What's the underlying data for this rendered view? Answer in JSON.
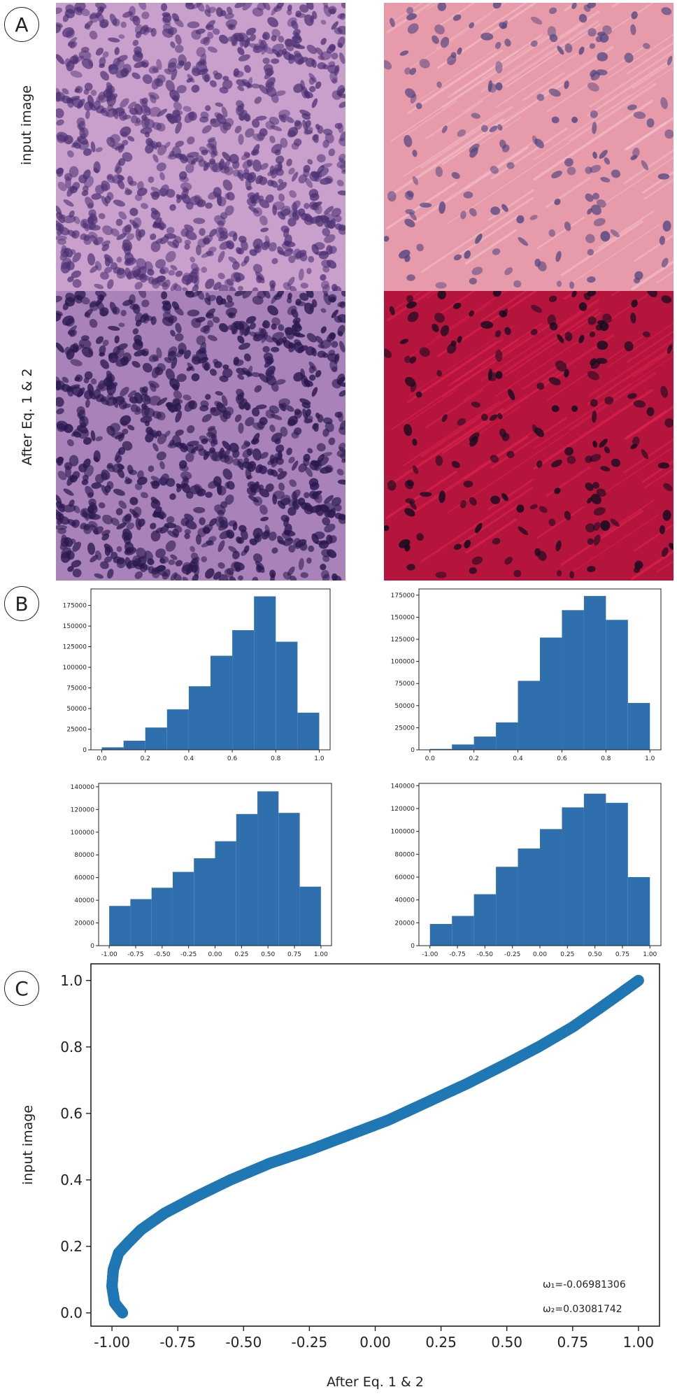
{
  "panel_a": {
    "letter": "A",
    "row_labels": [
      "input image",
      "After Eq. 1 & 2"
    ]
  },
  "panel_b": {
    "letter": "B"
  },
  "panel_c": {
    "letter": "C",
    "annotation_w1": "ω₁=-0.06981306",
    "annotation_w2": "ω₂=0.03081742"
  },
  "colors": {
    "bar": "#2f6fad",
    "scatter": "#1f77b4",
    "tile_normal_bg": "#c99fcb",
    "tile_stroma_bg": "#e79aa9",
    "tile_normal_out_bg": "#a882b8",
    "tile_stroma_out_bg": "#b5143d",
    "nucleus_dark": "#3a2460"
  },
  "chart_data": [
    {
      "type": "bar",
      "id": "hist_top_left",
      "bin_edges": [
        0.0,
        0.1,
        0.2,
        0.3,
        0.4,
        0.5,
        0.6,
        0.7,
        0.8,
        0.9,
        1.0
      ],
      "values": [
        3000,
        11000,
        27000,
        49000,
        77000,
        114000,
        145000,
        186000,
        131000,
        45000
      ],
      "xticks": [
        "0.0",
        "0.2",
        "0.4",
        "0.6",
        "0.8",
        "1.0"
      ],
      "yticks": [
        "0",
        "25000",
        "50000",
        "75000",
        "100000",
        "125000",
        "150000",
        "175000"
      ],
      "xlim": [
        -0.05,
        1.05
      ],
      "ylim": [
        0,
        195000
      ]
    },
    {
      "type": "bar",
      "id": "hist_top_right",
      "bin_edges": [
        0.0,
        0.1,
        0.2,
        0.3,
        0.4,
        0.5,
        0.6,
        0.7,
        0.8,
        0.9,
        1.0
      ],
      "values": [
        1000,
        6000,
        15000,
        31000,
        78000,
        127000,
        158000,
        174000,
        147000,
        53000
      ],
      "xticks": [
        "0.0",
        "0.2",
        "0.4",
        "0.6",
        "0.8",
        "1.0"
      ],
      "yticks": [
        "0",
        "25000",
        "50000",
        "75000",
        "100000",
        "125000",
        "150000",
        "175000"
      ],
      "xlim": [
        -0.05,
        1.05
      ],
      "ylim": [
        0,
        182000
      ]
    },
    {
      "type": "bar",
      "id": "hist_bottom_left",
      "bin_edges": [
        -1.0,
        -0.8,
        -0.6,
        -0.4,
        -0.2,
        0.0,
        0.2,
        0.4,
        0.6,
        0.8,
        1.0
      ],
      "values": [
        35000,
        41000,
        51000,
        65000,
        77000,
        92000,
        116000,
        136000,
        117000,
        52000
      ],
      "xticks": [
        "-1.00",
        "-0.75",
        "-0.50",
        "-0.25",
        "0.00",
        "0.25",
        "0.50",
        "0.75",
        "1.00"
      ],
      "yticks": [
        "0",
        "20000",
        "40000",
        "60000",
        "80000",
        "100000",
        "120000",
        "140000"
      ],
      "xlim": [
        -1.1,
        1.1
      ],
      "ylim": [
        0,
        143000
      ]
    },
    {
      "type": "bar",
      "id": "hist_bottom_right",
      "bin_edges": [
        -1.0,
        -0.8,
        -0.6,
        -0.4,
        -0.2,
        0.0,
        0.2,
        0.4,
        0.6,
        0.8,
        1.0
      ],
      "values": [
        19000,
        26000,
        45000,
        69000,
        85000,
        102000,
        121000,
        133000,
        125000,
        60000
      ],
      "xticks": [
        "-1.00",
        "-0.75",
        "-0.50",
        "-0.25",
        "0.00",
        "0.25",
        "0.50",
        "0.75",
        "1.00"
      ],
      "yticks": [
        "0",
        "20000",
        "40000",
        "60000",
        "80000",
        "100000",
        "120000",
        "140000"
      ],
      "xlim": [
        -1.1,
        1.1
      ],
      "ylim": [
        0,
        142000
      ]
    },
    {
      "type": "scatter",
      "id": "transfer_curve",
      "xlabel": "After Eq. 1 & 2",
      "ylabel": "input image",
      "x": [
        -0.96,
        -0.99,
        -1.0,
        -0.995,
        -0.975,
        -0.94,
        -0.89,
        -0.8,
        -0.68,
        -0.55,
        -0.4,
        -0.25,
        -0.1,
        0.05,
        0.2,
        0.35,
        0.5,
        0.62,
        0.75,
        0.85,
        0.93,
        1.0
      ],
      "y": [
        0.0,
        0.03,
        0.08,
        0.13,
        0.18,
        0.21,
        0.25,
        0.3,
        0.35,
        0.4,
        0.45,
        0.49,
        0.535,
        0.58,
        0.635,
        0.69,
        0.75,
        0.8,
        0.86,
        0.915,
        0.96,
        1.0
      ],
      "xticks": [
        "-1.00",
        "-0.75",
        "-0.50",
        "-0.25",
        "0.00",
        "0.25",
        "0.50",
        "0.75",
        "1.00"
      ],
      "yticks": [
        "0.0",
        "0.2",
        "0.4",
        "0.6",
        "0.8",
        "1.0"
      ],
      "xlim": [
        -1.08,
        1.08
      ],
      "ylim": [
        -0.04,
        1.05
      ]
    }
  ]
}
